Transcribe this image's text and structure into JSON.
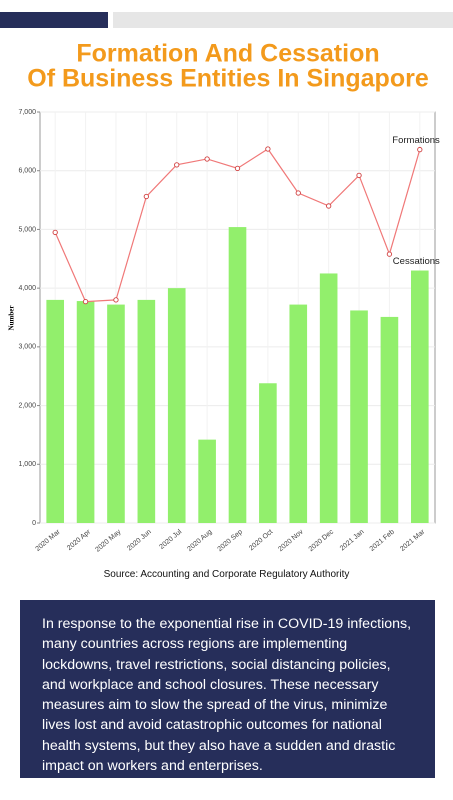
{
  "chart_data": {
    "type": "bar",
    "title": [
      "Formation And Cessation",
      "Of Business Entities In Singapore"
    ],
    "y_label": "Number",
    "categories": [
      "2020 Mar",
      "2020 Apr",
      "2020 May",
      "2020 Jun",
      "2020 Jul",
      "2020 Aug",
      "2020 Sep",
      "2020 Oct",
      "2020 Nov",
      "2020 Dec",
      "2021 Jan",
      "2021 Feb",
      "2021 Mar"
    ],
    "series": [
      {
        "name": "Cessations",
        "type": "bar",
        "color": "#92ef6c",
        "values": [
          3800,
          3780,
          3720,
          3800,
          4000,
          1420,
          5040,
          2380,
          3720,
          4250,
          3620,
          3510,
          4300
        ]
      },
      {
        "name": "Formations",
        "type": "line",
        "color": "#f07878",
        "values": [
          4950,
          3770,
          3800,
          5560,
          6100,
          6200,
          6040,
          6370,
          5620,
          5400,
          5920,
          4580,
          6360
        ]
      }
    ],
    "ylim": [
      0,
      7000
    ],
    "yticks": [
      0,
      {
        "value": 1000,
        "label": "1,000"
      },
      {
        "value": 2000,
        "label": "2,000"
      },
      {
        "value": 3000,
        "label": "3,000"
      },
      {
        "value": 4000,
        "label": "4,000"
      },
      {
        "value": 5000,
        "label": "5,000"
      },
      {
        "value": 6000,
        "label": "6,000"
      },
      {
        "value": 7000,
        "label": "7,000"
      }
    ],
    "grid": true
  },
  "source": "Source: Accounting and Corporate Regulatory Authority",
  "body": "In response to the exponential rise in COVID-19 infections, many countries across regions are implementing lockdowns, travel restrictions, social distancing policies, and workplace and school closures. These necessary measures aim to slow the spread of the virus, minimize lives lost and avoid catastrophic outcomes for national health systems, but they also have a sudden and drastic impact on workers and enterprises."
}
